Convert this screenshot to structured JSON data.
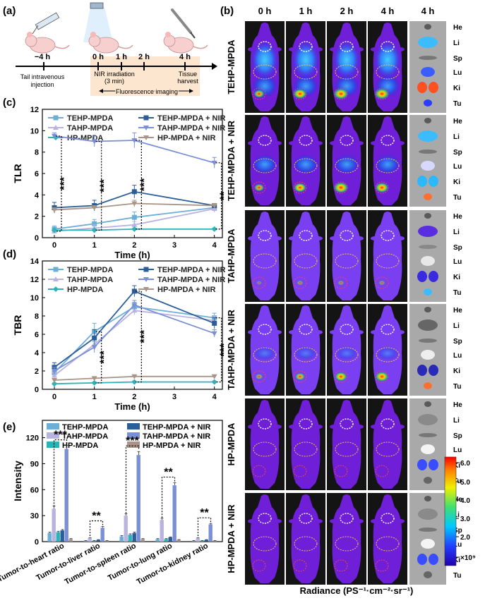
{
  "panel_labels": {
    "a": "(a)",
    "b": "(b)",
    "c": "(c)",
    "d": "(d)",
    "e": "(e)"
  },
  "colors": {
    "TEHP-MPDA": "#6baed6",
    "TAHP-MPDA": "#b9b3e0",
    "HP-MPDA": "#2bb3b8",
    "TEHP-MPDA + NIR": "#2b5d97",
    "TAHP-MPDA + NIR": "#7b8fd6",
    "HP-MPDA + NIR": "#a89588",
    "mouse_bg": "#6f1fd8",
    "mouse_dark": "#22187a"
  },
  "timeline": {
    "ticks": [
      "−4 h",
      "0 h",
      "1 h",
      "2 h",
      "4 h"
    ],
    "tail_label": [
      "Tail intravenous",
      "injection"
    ],
    "nir_label": [
      "NIR irradiation",
      "(3 min)"
    ],
    "harvest_label": [
      "Tissue",
      "harvest"
    ],
    "imaging_label": "Fluorescence imaging"
  },
  "imaging": {
    "time_headers": [
      "0 h",
      "1 h",
      "2 h",
      "4 h",
      "4 h"
    ],
    "groups": [
      "TEHP-MPDA",
      "TEHP-MPDA + NIR",
      "TAHP-MPDA",
      "TAHP-MPDA + NIR",
      "HP-MPDA",
      "HP-MPDA + NIR"
    ],
    "organs": [
      "He",
      "Li",
      "Sp",
      "Lu",
      "Ki",
      "Tu"
    ],
    "colorbar_ticks": [
      "6.0",
      "5.0",
      "4.0",
      "3.0",
      "2.0",
      "×10⁹"
    ],
    "colorbar_label": "Radiance (PS⁻¹·cm⁻²·sr⁻¹)"
  },
  "chart_data": [
    {
      "panel": "c",
      "type": "line",
      "ylabel": "TLR",
      "xlabel": "Time (h)",
      "x": [
        0,
        1,
        2,
        4
      ],
      "xlim": [
        -0.3,
        4.2
      ],
      "ylim": [
        0,
        12
      ],
      "xticks": [
        0,
        1,
        2,
        3,
        4
      ],
      "yticks": [
        0,
        2,
        4,
        6,
        8,
        10,
        12
      ],
      "legend": "top",
      "series": [
        {
          "name": "TEHP-MPDA",
          "values": [
            0.8,
            1.3,
            1.9,
            2.8
          ],
          "err": [
            0.3,
            0.4,
            0.5,
            0.4
          ]
        },
        {
          "name": "TAHP-MPDA",
          "values": [
            0.6,
            0.9,
            1.2,
            2.7
          ],
          "err": [
            0.2,
            0.3,
            0.3,
            0.3
          ]
        },
        {
          "name": "HP-MPDA",
          "values": [
            0.7,
            0.7,
            0.8,
            0.8
          ],
          "err": [
            0.1,
            0.1,
            0.1,
            0.1
          ]
        },
        {
          "name": "TEHP-MPDA + NIR",
          "values": [
            2.8,
            3.0,
            4.3,
            3.0
          ],
          "err": [
            0.5,
            0.5,
            0.6,
            0.2
          ]
        },
        {
          "name": "TAHP-MPDA + NIR",
          "values": [
            9.5,
            9.0,
            9.1,
            7.0
          ],
          "err": [
            0.3,
            0.5,
            0.7,
            0.5
          ]
        },
        {
          "name": "HP-MPDA + NIR",
          "values": [
            2.6,
            2.8,
            3.2,
            3.0
          ],
          "err": [
            0.2,
            0.2,
            0.3,
            0.2
          ]
        }
      ],
      "significance": [
        {
          "x": 0,
          "label": "***"
        },
        {
          "x": 1,
          "label": "***"
        },
        {
          "x": 2,
          "label": "***"
        },
        {
          "x": 4,
          "label": "**"
        }
      ]
    },
    {
      "panel": "d",
      "type": "line",
      "ylabel": "TBR",
      "xlabel": "Time (h)",
      "x": [
        0,
        1,
        2,
        4
      ],
      "xlim": [
        -0.3,
        4.2
      ],
      "ylim": [
        0,
        14
      ],
      "xticks": [
        0,
        1,
        2,
        3,
        4
      ],
      "yticks": [
        0,
        2,
        4,
        6,
        8,
        10,
        12,
        14
      ],
      "legend": "top",
      "series": [
        {
          "name": "TEHP-MPDA",
          "values": [
            1.8,
            6.3,
            9.0,
            7.8
          ],
          "err": [
            0.4,
            0.9,
            0.5,
            0.5
          ]
        },
        {
          "name": "TAHP-MPDA",
          "values": [
            1.5,
            4.9,
            8.6,
            7.5
          ],
          "err": [
            0.3,
            0.6,
            0.5,
            0.5
          ]
        },
        {
          "name": "HP-MPDA",
          "values": [
            0.6,
            0.7,
            0.8,
            0.8
          ],
          "err": [
            0.1,
            0.1,
            0.1,
            0.1
          ]
        },
        {
          "name": "TEHP-MPDA + NIR",
          "values": [
            2.4,
            5.6,
            10.7,
            7.2
          ],
          "err": [
            0.5,
            0.9,
            0.6,
            0.6
          ]
        },
        {
          "name": "TAHP-MPDA + NIR",
          "values": [
            2.0,
            4.6,
            9.2,
            6.1
          ],
          "err": [
            0.4,
            0.6,
            0.5,
            0.4
          ]
        },
        {
          "name": "HP-MPDA + NIR",
          "values": [
            1.0,
            1.2,
            1.4,
            1.4
          ],
          "err": [
            0.1,
            0.1,
            0.1,
            0.1
          ]
        }
      ],
      "significance": [
        {
          "x": 1,
          "label": "***"
        },
        {
          "x": 2,
          "label": "***"
        },
        {
          "x": 4,
          "label": "***"
        }
      ]
    },
    {
      "panel": "e",
      "type": "bar",
      "ylabel": "Intensity",
      "categories": [
        "Tumor-to-heart ratio",
        "Tumor-to-liver ratio",
        "Tumor-to-spleen ratio",
        "Tumor-to-lung ratio",
        "Tumor-to-kidney ratio"
      ],
      "ylim": [
        0,
        140
      ],
      "yticks": [
        0,
        30,
        60,
        90,
        120
      ],
      "legend": "top",
      "series": [
        {
          "name": "TEHP-MPDA",
          "values": [
            10,
            1,
            6,
            3,
            1
          ],
          "err": [
            1,
            0.3,
            1,
            0.5,
            0.3
          ]
        },
        {
          "name": "TAHP-MPDA",
          "values": [
            38,
            4,
            30,
            25,
            4
          ],
          "err": [
            3,
            0.5,
            2,
            2,
            0.5
          ]
        },
        {
          "name": "HP-MPDA",
          "values": [
            11,
            1,
            8,
            3,
            1
          ],
          "err": [
            1,
            0.3,
            1,
            0.5,
            0.3
          ]
        },
        {
          "name": "TEHP-MPDA + NIR",
          "values": [
            13,
            2,
            10,
            5,
            2
          ],
          "err": [
            1,
            0.3,
            1,
            0.5,
            0.3
          ]
        },
        {
          "name": "TAHP-MPDA + NIR",
          "values": [
            107,
            16,
            100,
            65,
            20
          ],
          "err": [
            4,
            1.5,
            4,
            3,
            1
          ]
        },
        {
          "name": "HP-MPDA + NIR",
          "values": [
            3,
            1,
            3,
            2,
            1
          ],
          "err": [
            0.5,
            0.3,
            0.5,
            0.4,
            0.3
          ]
        }
      ],
      "significance": [
        {
          "category": 0,
          "label": "***"
        },
        {
          "category": 1,
          "label": "**"
        },
        {
          "category": 2,
          "label": "***"
        },
        {
          "category": 3,
          "label": "**"
        },
        {
          "category": 4,
          "label": "**"
        }
      ]
    }
  ]
}
